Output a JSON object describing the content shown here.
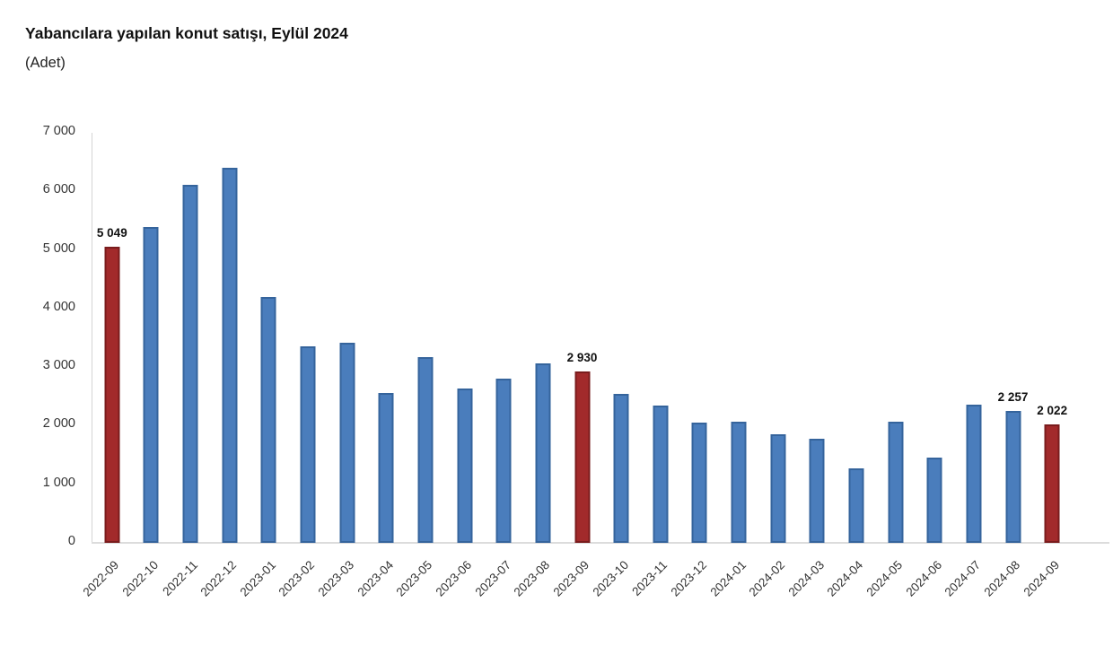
{
  "chart_data": {
    "type": "bar",
    "title": "Yabancılara yapılan konut satışı, Eylül 2024",
    "unit_label": "(Adet)",
    "categories": [
      "2022-09",
      "2022-10",
      "2022-11",
      "2022-12",
      "2023-01",
      "2023-02",
      "2023-03",
      "2023-04",
      "2023-05",
      "2023-06",
      "2023-07",
      "2023-08",
      "2023-09",
      "2023-10",
      "2023-11",
      "2023-12",
      "2024-01",
      "2024-02",
      "2024-03",
      "2024-04",
      "2024-05",
      "2024-06",
      "2024-07",
      "2024-08",
      "2024-09"
    ],
    "values": [
      5049,
      5390,
      6110,
      6400,
      4190,
      3360,
      3420,
      2560,
      3170,
      2640,
      2800,
      3060,
      2930,
      2550,
      2350,
      2060,
      2070,
      1860,
      1780,
      1270,
      2070,
      1450,
      2360,
      2257,
      2022
    ],
    "data_labels": {
      "0": "5 049",
      "12": "2 930",
      "23": "2 257",
      "24": "2 022"
    },
    "highlighted_indices": [
      0,
      12,
      24
    ],
    "ylim": [
      0,
      7000
    ],
    "ytick_labels": [
      "0",
      "1 000",
      "2 000",
      "3 000",
      "4 000",
      "5 000",
      "6 000",
      "7 000"
    ],
    "grid": false,
    "legend": false,
    "colors": {
      "bar_fill": "#4a7dbc",
      "bar_border": "#35649c",
      "highlight_fill": "#a22a2b",
      "highlight_border": "#7a1c1d",
      "axis_line": "#d4d4d4",
      "tick_text": "#333333",
      "title_text": "#111111"
    }
  }
}
